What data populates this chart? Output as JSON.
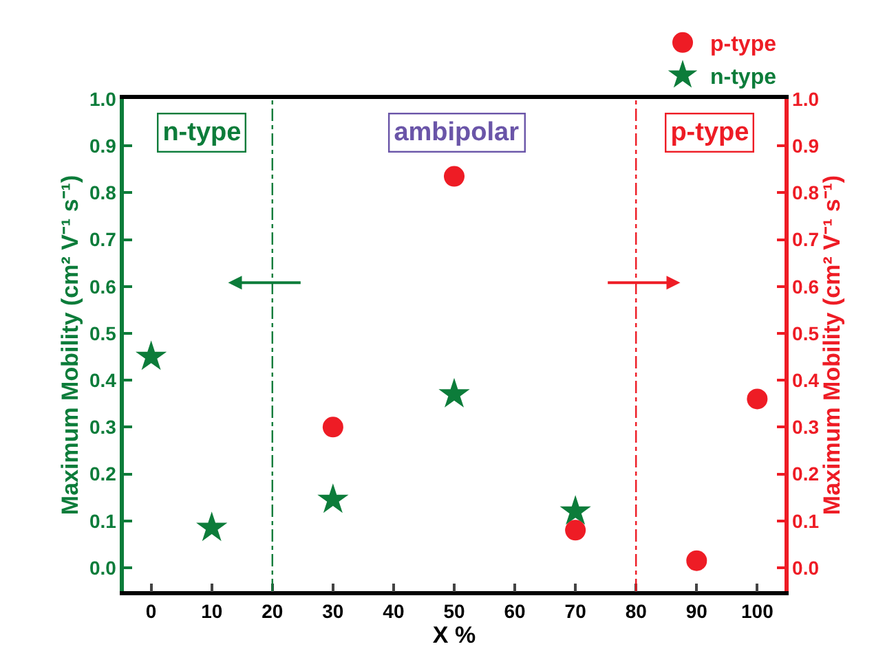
{
  "chart_data": {
    "type": "scatter",
    "xlabel": "X %",
    "ylabel": "Maximum Mobility (cm² V⁻¹ s⁻¹)",
    "y2label": "Maximum Mobility (cm² V⁻¹ s⁻¹)",
    "xlim": [
      -4.5,
      104.5
    ],
    "xticks": [
      0,
      10,
      20,
      30,
      40,
      50,
      60,
      70,
      80,
      90,
      100
    ],
    "ylim": [
      -0.05,
      1.0
    ],
    "yticks": [
      {
        "value": 0,
        "label": "0.0"
      },
      0.1,
      0.2,
      0.3,
      0.4,
      0.5,
      0.6,
      0.7,
      0.8,
      0.9,
      {
        "value": 1,
        "label": "1.0"
      }
    ],
    "y2lim": [
      -0.05,
      1.0
    ],
    "y2ticks": [
      {
        "value": 0,
        "label": "0.0"
      },
      0.1,
      0.2,
      0.3,
      0.4,
      0.5,
      0.6,
      0.7,
      0.8,
      0.9,
      {
        "value": 1,
        "label": "1.0"
      }
    ],
    "series": [
      {
        "name": "p-type",
        "color": "#ee1c25",
        "marker": "circle",
        "axis": "y2",
        "x": [
          30,
          50,
          70,
          90,
          100
        ],
        "values": [
          0.3,
          0.835,
          0.08,
          0.015,
          0.36
        ]
      },
      {
        "name": "n-type",
        "color": "#0c7c3a",
        "marker": "star",
        "axis": "y",
        "x": [
          0,
          10,
          30,
          50,
          70
        ],
        "values": [
          0.45,
          0.085,
          0.145,
          0.37,
          0.12
        ]
      }
    ],
    "ref_lines": [
      {
        "axis": "x",
        "value": 20,
        "color": "#0c7c3a",
        "line_style": "dashed"
      },
      {
        "axis": "x",
        "value": 80,
        "color": "#ee1c25",
        "line_style": "dashed"
      }
    ],
    "annotations": [
      "n-type",
      "ambipolar",
      "p-type"
    ],
    "legend": "top right"
  }
}
